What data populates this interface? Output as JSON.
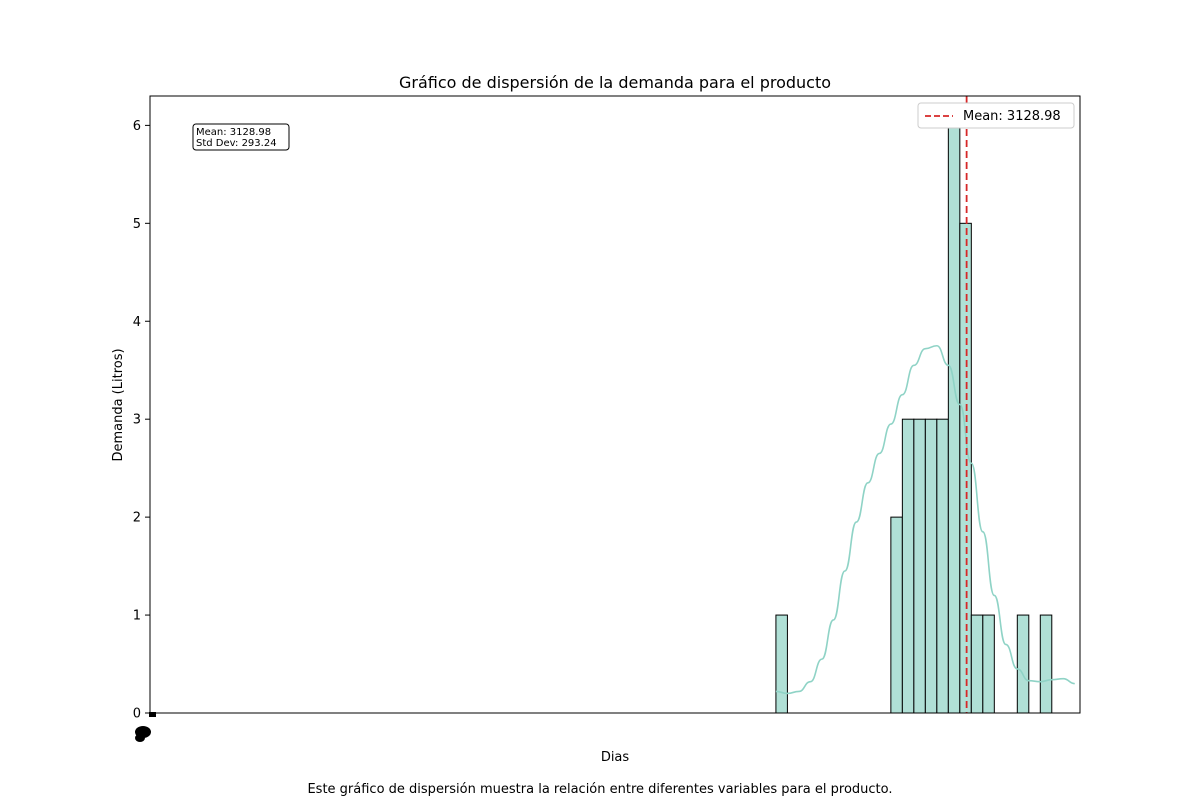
{
  "chart_data": {
    "type": "bar",
    "title": "Gráfico de dispersión de la demanda para el producto",
    "xlabel": "Dias",
    "ylabel": "Demanda (Litros)",
    "ylim": [
      0,
      6.3
    ],
    "yticks": [
      "0",
      "1",
      "2",
      "3",
      "4",
      "5",
      "6"
    ],
    "grid": false,
    "legend": {
      "position": "top-right",
      "entries": [
        "Mean: 3128.98"
      ]
    },
    "stats_box": [
      "Mean: 3128.98",
      "Std Dev: 293.24"
    ],
    "bins": {
      "x": [
        2352,
        2396,
        2440,
        2484,
        2528,
        2572,
        2616,
        2660,
        2704,
        2748,
        2792,
        2836,
        2880,
        2924,
        2968,
        3012,
        3056,
        3100,
        3144,
        3188,
        3232,
        3276,
        3320,
        3364,
        3408,
        3452,
        3496,
        3540
      ],
      "values": [
        1,
        0,
        0,
        0,
        0,
        0,
        0,
        0,
        0,
        0,
        0,
        0,
        0,
        0,
        0,
        0,
        0,
        0,
        0,
        0,
        0,
        0,
        0,
        0,
        0,
        0,
        0,
        0
      ]
    },
    "bars": [
      {
        "x": 2396,
        "value": 1
      },
      {
        "x": 2836,
        "value": 2
      },
      {
        "x": 2880,
        "value": 3
      },
      {
        "x": 2924,
        "value": 3
      },
      {
        "x": 2968,
        "value": 3
      },
      {
        "x": 3012,
        "value": 3
      },
      {
        "x": 3056,
        "value": 6
      },
      {
        "x": 3100,
        "value": 5
      },
      {
        "x": 3144,
        "value": 1
      },
      {
        "x": 3188,
        "value": 1
      },
      {
        "x": 3320,
        "value": 1
      },
      {
        "x": 3408,
        "value": 1
      }
    ],
    "bar_width": 44,
    "xlim": [
      0,
      3560
    ],
    "mean": 3128.98,
    "colors": {
      "bar": "#b0e0d6",
      "edge": "#000000",
      "kde": "#8fd3c6",
      "mean_line": "#d62728"
    }
  },
  "caption": "Este gráfico de dispersión muestra la relación entre diferentes variables para el producto."
}
